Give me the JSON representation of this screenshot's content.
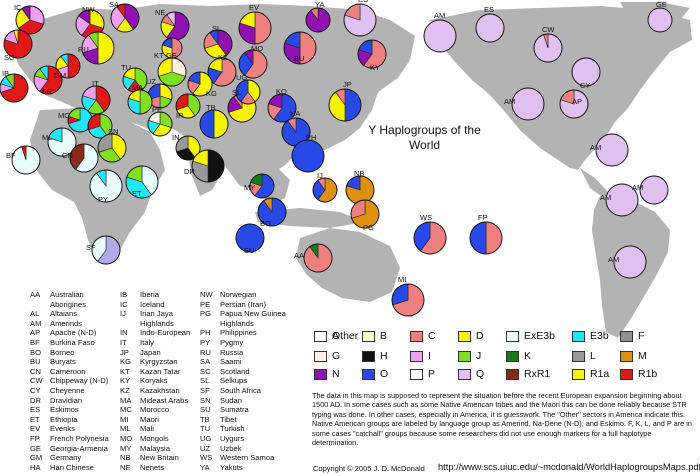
{
  "title": "Y Haplogroups of the World",
  "colors": {
    "A": "#b1a9ec",
    "B": "#ffffcc",
    "C": "#f08080",
    "D": "#f5f500",
    "ExE3b": "#e9fffd",
    "E3b": "#20e8f8",
    "F": "#909090",
    "G": "#fff0e0",
    "H": "#111111",
    "I": "#f0a0f0",
    "J": "#80e020",
    "K": "#1a7a1a",
    "L": "#999999",
    "M": "#e09010",
    "N": "#9010b0",
    "O": "#2848e8",
    "P": "#ffffff",
    "Q": "#e0c0f0",
    "RxR1": "#8a2a18",
    "R1a": "#f5f500",
    "R1b": "#e01818",
    "Other": "#ffffff"
  },
  "legend": [
    {
      "key": "A",
      "label": "A"
    },
    {
      "key": "B",
      "label": "B"
    },
    {
      "key": "C",
      "label": "C"
    },
    {
      "key": "D",
      "label": "D"
    },
    {
      "key": "ExE3b",
      "label": "ExE3b"
    },
    {
      "key": "E3b",
      "label": "E3b"
    },
    {
      "key": "F",
      "label": "F"
    },
    {
      "key": "G",
      "label": "G"
    },
    {
      "key": "H",
      "label": "H"
    },
    {
      "key": "I",
      "label": "I"
    },
    {
      "key": "J",
      "label": "J"
    },
    {
      "key": "K",
      "label": "K"
    },
    {
      "key": "L",
      "label": "L"
    },
    {
      "key": "M",
      "label": "M"
    },
    {
      "key": "N",
      "label": "N"
    },
    {
      "key": "O",
      "label": "O"
    },
    {
      "key": "P",
      "label": "P"
    },
    {
      "key": "Q",
      "label": "Q"
    },
    {
      "key": "RxR1",
      "label": "RxR1"
    },
    {
      "key": "R1a",
      "label": "R1a"
    },
    {
      "key": "R1b",
      "label": "R1b"
    },
    {
      "key": "Other",
      "label": "Other"
    }
  ],
  "populations": [
    {
      "code": "IC",
      "s": {
        "I": 30,
        "R1b": 35,
        "R1a": 25,
        "N": 10
      }
    },
    {
      "code": "NW",
      "s": {
        "R1a": 30,
        "R1b": 30,
        "I": 25,
        "N": 15
      }
    },
    {
      "code": "SA",
      "s": {
        "N": 40,
        "R1a": 20,
        "I": 30,
        "R1b": 10
      }
    },
    {
      "code": "NE",
      "s": {
        "N": 60,
        "R1a": 20,
        "C": 10,
        "Q": 10
      }
    },
    {
      "code": "EV",
      "s": {
        "C": 50,
        "N": 30,
        "R1a": 20
      }
    },
    {
      "code": "YA",
      "s": {
        "N": 90,
        "C": 10
      }
    },
    {
      "code": "ES",
      "s": {
        "Q": 80,
        "C": 20
      }
    },
    {
      "code": "KY",
      "s": {
        "C": 60,
        "N": 20,
        "O": 20
      }
    },
    {
      "code": "SC",
      "s": {
        "R1b": 80,
        "I": 15,
        "R1a": 5
      }
    },
    {
      "code": "GM",
      "s": {
        "R1b": 50,
        "I": 20,
        "R1a": 20,
        "E3b": 10
      }
    },
    {
      "code": "RU",
      "s": {
        "R1a": 50,
        "N": 20,
        "I": 20,
        "J": 10
      }
    },
    {
      "code": "SL",
      "s": {
        "N": 40,
        "R1a": 30,
        "C": 20,
        "O": 10
      }
    },
    {
      "code": "KT",
      "s": {
        "C": 50,
        "R1a": 30,
        "O": 20
      }
    },
    {
      "code": "KZ",
      "s": {
        "C": 60,
        "O": 20,
        "R1a": 20
      }
    },
    {
      "code": "MO",
      "s": {
        "C": 60,
        "O": 30,
        "N": 10
      }
    },
    {
      "code": "BU",
      "s": {
        "C": 50,
        "N": 30,
        "O": 20
      }
    },
    {
      "code": "IB",
      "s": {
        "R1b": 70,
        "I": 10,
        "E3b": 10,
        "J": 10
      }
    },
    {
      "code": "FR",
      "s": {
        "R1b": 60,
        "I": 20,
        "J": 10,
        "E3b": 10
      }
    },
    {
      "code": "IT",
      "s": {
        "R1b": 40,
        "J": 20,
        "E3b": 20,
        "I": 20
      }
    },
    {
      "code": "TU",
      "s": {
        "J": 40,
        "R1b": 20,
        "E3b": 20,
        "R1a": 20
      }
    },
    {
      "code": "GE",
      "s": {
        "G": 30,
        "J": 40,
        "R1a": 30
      }
    },
    {
      "code": "KG",
      "s": {
        "R1a": 60,
        "C": 20,
        "O": 20
      }
    },
    {
      "code": "IR",
      "s": {
        "J": 40,
        "R1a": 30,
        "R1b": 30
      }
    },
    {
      "code": "UZ",
      "s": {
        "R1a": 30,
        "J": 20,
        "C": 20,
        "O": 30
      }
    },
    {
      "code": "SL2",
      "s": {
        "R1a": 70,
        "N": 20,
        "C": 10
      }
    },
    {
      "code": "TB",
      "s": {
        "D": 50,
        "O": 50
      }
    },
    {
      "code": "UG",
      "s": {
        "R1a": 40,
        "C": 20,
        "O": 40
      }
    },
    {
      "code": "KO",
      "s": {
        "O": 60,
        "C": 20,
        "N": 20
      }
    },
    {
      "code": "JP",
      "s": {
        "O": 50,
        "D": 40,
        "C": 10
      }
    },
    {
      "code": "HA",
      "s": {
        "O": 90,
        "C": 10
      }
    },
    {
      "code": "MC",
      "s": {
        "E3b": 70,
        "R1b": 10,
        "J": 20
      }
    },
    {
      "code": "ML",
      "s": {
        "ExE3b": 80,
        "E3b": 20
      }
    },
    {
      "code": "IT2",
      "s": {
        "J": 40,
        "E3b": 30,
        "R1b": 30
      }
    },
    {
      "code": "MA",
      "s": {
        "J": 50,
        "E3b": 30,
        "R1a": 20
      }
    },
    {
      "code": "PE",
      "s": {
        "J": 30,
        "R1a": 30,
        "E3b": 20,
        "G": 20
      }
    },
    {
      "code": "SN",
      "s": {
        "R1a": 40,
        "J": 30,
        "L": 30
      }
    },
    {
      "code": "IN",
      "s": {
        "R1a": 40,
        "H": 30,
        "L": 30
      }
    },
    {
      "code": "DR",
      "s": {
        "H": 50,
        "L": 30,
        "R1a": 20
      }
    },
    {
      "code": "PH",
      "s": {
        "O": 100
      }
    },
    {
      "code": "MY",
      "s": {
        "O": 60,
        "C": 20,
        "K": 20
      }
    },
    {
      "code": "BF",
      "s": {
        "ExE3b": 95,
        "R1b": 5
      }
    },
    {
      "code": "CN",
      "s": {
        "ExE3b": 60,
        "RxR1": 40
      }
    },
    {
      "code": "ET",
      "s": {
        "ExE3b": 40,
        "E3b": 40,
        "J": 20
      }
    },
    {
      "code": "PY",
      "s": {
        "ExE3b": 90,
        "E3b": 10
      }
    },
    {
      "code": "IJ",
      "s": {
        "M": 60,
        "O": 30,
        "C": 10
      }
    },
    {
      "code": "NB",
      "s": {
        "M": 80,
        "O": 20
      }
    },
    {
      "code": "BO",
      "s": {
        "O": 90,
        "M": 10
      }
    },
    {
      "code": "PG",
      "s": {
        "M": 70,
        "C": 30
      }
    },
    {
      "code": "SU",
      "s": {
        "O": 100
      }
    },
    {
      "code": "WS",
      "s": {
        "C": 60,
        "O": 40
      }
    },
    {
      "code": "FP",
      "s": {
        "C": 50,
        "O": 50
      }
    },
    {
      "code": "SF",
      "s": {
        "A": 60,
        "ExE3b": 40
      }
    },
    {
      "code": "AA",
      "s": {
        "C": 90,
        "K": 10
      }
    },
    {
      "code": "MI",
      "s": {
        "C": 70,
        "O": 30
      }
    },
    {
      "code": "AM",
      "s": {
        "Q": 100
      }
    },
    {
      "code": "ES2",
      "s": {
        "Q": 100
      }
    },
    {
      "code": "GE2",
      "s": {
        "Q": 100
      }
    },
    {
      "code": "CW",
      "s": {
        "Q": 95,
        "C": 5
      }
    },
    {
      "code": "AM2",
      "s": {
        "Q": 100
      }
    },
    {
      "code": "CY",
      "s": {
        "Q": 100
      }
    },
    {
      "code": "AP",
      "s": {
        "Q": 80,
        "C": 20
      }
    },
    {
      "code": "AM3",
      "s": {
        "Q": 100
      }
    },
    {
      "code": "AM4",
      "s": {
        "Q": 100
      }
    },
    {
      "code": "AM5",
      "s": {
        "Q": 100
      }
    },
    {
      "code": "AM6",
      "s": {
        "Q": 100
      }
    }
  ],
  "labels": {
    "IC": "IC",
    "NW": "NW",
    "SA": "SA",
    "NE": "NE",
    "EV": "EV",
    "YA": "YA",
    "ES": "ES",
    "KY": "KY",
    "SC": "SC",
    "GM": "GM",
    "RU": "RU",
    "SL": "SL",
    "KT": "KT",
    "KZ": "KZ",
    "MO": "MO",
    "BU": "BU",
    "IB": "IB",
    "FR": "FR",
    "IT": "IT",
    "TU": "TU",
    "GE": "GE",
    "KG": "KG",
    "IR": "IR",
    "UZ": "UZ",
    "SL2": "SL",
    "TB": "TB",
    "UG": "UG",
    "KO": "KO",
    "JP": "JP",
    "HA": "HA",
    "MC": "MC",
    "ML": "ML",
    "MA": "MA",
    "PE": "PE",
    "SN": "SN",
    "IN": "IN",
    "DR": "DR",
    "PH": "PH",
    "MY": "MY",
    "BF": "BF",
    "CN": "CN",
    "ET": "ET",
    "PY": "PY",
    "IJ": "IJ",
    "NB": "NB",
    "BO": "BO",
    "PG": "PG",
    "SU": "SU",
    "WS": "WS",
    "FP": "FP",
    "SF": "SF",
    "AA": "AA",
    "MI": "MI",
    "AM": "AM",
    "ES2": "ES",
    "GE2": "GE",
    "CW": "CW",
    "AM2": "AM",
    "CY": "CY",
    "AP": "AP",
    "AM3": "AM",
    "AM4": "AM",
    "AM5": "AM",
    "AM6": "AM"
  },
  "abbr_col1": [
    [
      "AA",
      "Australian"
    ],
    [
      "",
      "Aborigines"
    ],
    [
      "AL",
      "Altaians"
    ],
    [
      "AM",
      "Amerinds"
    ],
    [
      "AP",
      "Apache (N-D)"
    ],
    [
      "BF",
      "Burkina Faso"
    ],
    [
      "BO",
      "Borneo"
    ],
    [
      "BU",
      "Buryats"
    ],
    [
      "CN",
      "Cameroon"
    ],
    [
      "CW",
      "Chippeway (N-D)"
    ],
    [
      "CY",
      "Cheyenne"
    ],
    [
      "DR",
      "Dravidian"
    ],
    [
      "ES",
      "Eskimos"
    ],
    [
      "ET",
      "Ethiopia"
    ],
    [
      "EV",
      "Evenks"
    ],
    [
      "FP",
      "French Polynesia"
    ],
    [
      "GE",
      "Georgia-Armenia"
    ],
    [
      "GM",
      "Germany"
    ],
    [
      "HA",
      "Han Chinese"
    ]
  ],
  "abbr_col2": [
    [
      "IB",
      "Iberia"
    ],
    [
      "IC",
      "Iceland"
    ],
    [
      "IJ",
      "Irian Jaya"
    ],
    [
      "",
      "Highlands"
    ],
    [
      "IN",
      "Indo-European"
    ],
    [
      "IT",
      "Italy"
    ],
    [
      "JP",
      "Japan"
    ],
    [
      "KG",
      "Kyrgyzstan"
    ],
    [
      "KT",
      "Kazan Tatar"
    ],
    [
      "KY",
      "Koryaks"
    ],
    [
      "KZ",
      "Kazakhstan"
    ],
    [
      "MA",
      "Mideast Arabs"
    ],
    [
      "MC",
      "Morocco"
    ],
    [
      "MI",
      "Maori"
    ],
    [
      "ML",
      "Mali"
    ],
    [
      "MO",
      "Mongols"
    ],
    [
      "MY",
      "Malaysia"
    ],
    [
      "NB",
      "New Britain"
    ],
    [
      "NE",
      "Nenets"
    ]
  ],
  "abbr_col3": [
    [
      "NW",
      "Norwegian"
    ],
    [
      "PE",
      "Persian (Iran)"
    ],
    [
      "PG",
      "Papua New Guinea"
    ],
    [
      "",
      "Highlands"
    ],
    [
      "PH",
      "Philippines"
    ],
    [
      "PY",
      "Pygmy"
    ],
    [
      "RU",
      "Russia"
    ],
    [
      "SA",
      "Saami"
    ],
    [
      "SC",
      "Scotland"
    ],
    [
      "SL",
      "Selkups"
    ],
    [
      "SF",
      "South Africa"
    ],
    [
      "SN",
      "Sudan"
    ],
    [
      "SU",
      "Sumatra"
    ],
    [
      "TB",
      "Tibet"
    ],
    [
      "TU",
      "Turkish"
    ],
    [
      "UG",
      "Uygurs"
    ],
    [
      "UZ",
      "Uzbek"
    ],
    [
      "WS",
      "Western Samoa"
    ],
    [
      "YA",
      "Yakuts"
    ]
  ],
  "note": "The data in this map is supposed to represent the situation before the recent European expansion beginning about 1500 AD. In some cases such as some Native American tribes and the Maori this can be done reliably because STR typing was done. In other cases, especially in America, it is guesswork. The \"Other\" sectors in America indicate this. Native American groups are labeled by language group as Amerind, Na-Dene (N-D), and Eskimo.  F, K, L, and P are in some cases \"catchall\" groups because some researchers did not use enough markers for a full haplotype determination.",
  "copyright": "Copyright © 2005 J. D. McDonald",
  "url": "http://www.scs.uiuc.edu/~mcdonald/WorldHaplogroupsMaps.pdf"
}
